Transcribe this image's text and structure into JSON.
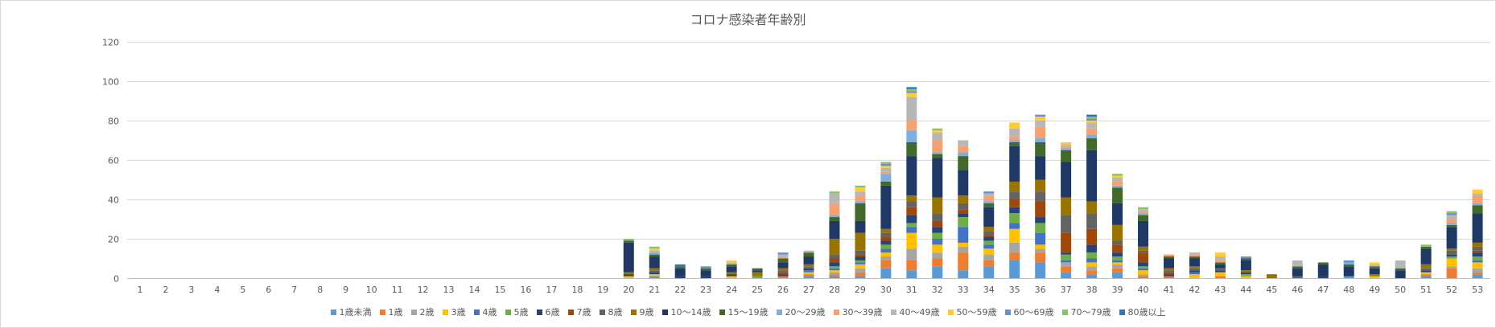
{
  "chart_data": {
    "type": "stacked-bar",
    "title": "コロナ感染者年齢別",
    "xlabel": "",
    "ylabel": "",
    "ylim": [
      0,
      120
    ],
    "yticks": [
      0,
      20,
      40,
      60,
      80,
      100,
      120
    ],
    "grid": true,
    "legend_position": "bottom",
    "categories": [
      "1",
      "2",
      "3",
      "4",
      "5",
      "6",
      "7",
      "8",
      "9",
      "10",
      "11",
      "12",
      "13",
      "14",
      "15",
      "16",
      "17",
      "18",
      "19",
      "20",
      "21",
      "22",
      "23",
      "24",
      "25",
      "26",
      "27",
      "28",
      "29",
      "30",
      "31",
      "32",
      "33",
      "34",
      "35",
      "36",
      "37",
      "38",
      "39",
      "40",
      "41",
      "42",
      "43",
      "44",
      "45",
      "46",
      "47",
      "48",
      "49",
      "50",
      "51",
      "52",
      "53"
    ],
    "series": [
      {
        "name": "1歳未満",
        "color": "#5b9bd5",
        "values": [
          0,
          0,
          0,
          0,
          0,
          0,
          0,
          0,
          0,
          0,
          0,
          0,
          0,
          0,
          0,
          0,
          0,
          0,
          0,
          0,
          1,
          0,
          0,
          0,
          0,
          0,
          1,
          1,
          1,
          5,
          4,
          6,
          4,
          6,
          9,
          8,
          3,
          2,
          3,
          0,
          0,
          0,
          0,
          0,
          0,
          0,
          0,
          1,
          0,
          0,
          1,
          0,
          2
        ]
      },
      {
        "name": "1歳",
        "color": "#ed7d31",
        "values": [
          0,
          0,
          0,
          0,
          0,
          0,
          0,
          0,
          0,
          0,
          0,
          0,
          0,
          0,
          0,
          0,
          0,
          0,
          0,
          0,
          0,
          0,
          0,
          0,
          0,
          1,
          1,
          1,
          2,
          4,
          5,
          4,
          9,
          3,
          4,
          5,
          3,
          2,
          2,
          1,
          1,
          0,
          1,
          0,
          0,
          0,
          0,
          0,
          0,
          0,
          1,
          5,
          1
        ]
      },
      {
        "name": "2歳",
        "color": "#a5a5a5",
        "values": [
          0,
          0,
          0,
          0,
          0,
          0,
          0,
          0,
          0,
          0,
          0,
          0,
          0,
          0,
          0,
          0,
          0,
          0,
          0,
          0,
          0,
          0,
          0,
          0,
          0,
          0,
          0,
          1,
          2,
          2,
          6,
          3,
          3,
          3,
          5,
          2,
          2,
          2,
          2,
          1,
          0,
          0,
          0,
          0,
          0,
          0,
          0,
          0,
          0,
          0,
          0,
          1,
          2
        ]
      },
      {
        "name": "3歳",
        "color": "#ffc000",
        "values": [
          0,
          0,
          0,
          0,
          0,
          0,
          0,
          0,
          0,
          0,
          0,
          0,
          0,
          0,
          0,
          0,
          0,
          0,
          0,
          1,
          1,
          0,
          0,
          1,
          0,
          0,
          1,
          1,
          2,
          2,
          8,
          4,
          2,
          3,
          7,
          2,
          0,
          2,
          1,
          2,
          0,
          2,
          2,
          1,
          0,
          0,
          0,
          0,
          1,
          0,
          1,
          4,
          3
        ]
      },
      {
        "name": "4歳",
        "color": "#4472c4",
        "values": [
          0,
          0,
          0,
          0,
          0,
          0,
          0,
          0,
          0,
          0,
          0,
          0,
          0,
          0,
          0,
          0,
          0,
          0,
          0,
          0,
          0,
          0,
          0,
          0,
          0,
          0,
          1,
          1,
          1,
          2,
          3,
          3,
          8,
          2,
          3,
          6,
          1,
          2,
          1,
          1,
          0,
          1,
          0,
          0,
          0,
          0,
          0,
          0,
          0,
          0,
          0,
          0,
          1
        ]
      },
      {
        "name": "5歳",
        "color": "#70ad47",
        "values": [
          0,
          0,
          0,
          0,
          0,
          0,
          0,
          0,
          0,
          0,
          0,
          0,
          0,
          0,
          0,
          0,
          0,
          0,
          0,
          0,
          0,
          0,
          0,
          0,
          1,
          0,
          0,
          1,
          1,
          2,
          2,
          3,
          5,
          2,
          5,
          5,
          3,
          3,
          2,
          1,
          0,
          0,
          0,
          1,
          0,
          0,
          0,
          0,
          0,
          0,
          0,
          1,
          2
        ]
      },
      {
        "name": "6歳",
        "color": "#264478",
        "values": [
          0,
          0,
          0,
          0,
          0,
          0,
          0,
          0,
          0,
          0,
          0,
          0,
          0,
          0,
          0,
          0,
          0,
          0,
          0,
          1,
          1,
          1,
          1,
          1,
          0,
          1,
          1,
          2,
          2,
          2,
          4,
          3,
          2,
          2,
          3,
          3,
          1,
          4,
          2,
          2,
          1,
          1,
          1,
          1,
          0,
          0,
          1,
          0,
          0,
          0,
          1,
          1,
          2
        ]
      },
      {
        "name": "7歳",
        "color": "#9e480e",
        "values": [
          0,
          0,
          0,
          0,
          0,
          0,
          0,
          0,
          0,
          0,
          0,
          0,
          0,
          0,
          0,
          0,
          0,
          0,
          0,
          0,
          0,
          0,
          0,
          0,
          0,
          1,
          0,
          2,
          1,
          2,
          4,
          3,
          2,
          1,
          4,
          8,
          10,
          8,
          4,
          5,
          1,
          0,
          0,
          0,
          0,
          0,
          0,
          0,
          0,
          0,
          0,
          0,
          1
        ]
      },
      {
        "name": "8歳",
        "color": "#636363",
        "values": [
          0,
          0,
          0,
          0,
          0,
          0,
          0,
          0,
          0,
          0,
          0,
          0,
          0,
          0,
          0,
          0,
          0,
          0,
          0,
          0,
          1,
          0,
          0,
          0,
          0,
          1,
          1,
          2,
          2,
          2,
          3,
          4,
          3,
          2,
          4,
          5,
          9,
          8,
          2,
          1,
          1,
          1,
          1,
          0,
          0,
          1,
          0,
          0,
          0,
          0,
          1,
          2,
          2
        ]
      },
      {
        "name": "9歳",
        "color": "#997300",
        "values": [
          0,
          0,
          0,
          0,
          0,
          0,
          0,
          0,
          0,
          0,
          0,
          0,
          0,
          0,
          0,
          0,
          0,
          0,
          0,
          1,
          1,
          0,
          0,
          1,
          2,
          1,
          1,
          8,
          9,
          2,
          3,
          8,
          4,
          2,
          5,
          6,
          9,
          6,
          8,
          2,
          1,
          1,
          0,
          1,
          2,
          0,
          0,
          0,
          1,
          0,
          2,
          1,
          2
        ]
      },
      {
        "name": "10〜14歳",
        "color": "#203864",
        "values": [
          0,
          0,
          0,
          0,
          0,
          0,
          0,
          0,
          0,
          0,
          0,
          0,
          0,
          0,
          0,
          0,
          0,
          0,
          0,
          15,
          6,
          4,
          3,
          3,
          1,
          3,
          4,
          9,
          6,
          22,
          20,
          20,
          13,
          10,
          18,
          12,
          18,
          26,
          11,
          13,
          5,
          4,
          2,
          5,
          0,
          4,
          6,
          5,
          3,
          4,
          8,
          11,
          15
        ]
      },
      {
        "name": "15〜19歳",
        "color": "#43682b",
        "values": [
          0,
          0,
          0,
          0,
          0,
          0,
          0,
          0,
          0,
          0,
          0,
          0,
          0,
          0,
          0,
          0,
          0,
          0,
          0,
          1,
          1,
          1,
          1,
          1,
          1,
          2,
          2,
          2,
          9,
          2,
          7,
          2,
          7,
          2,
          2,
          7,
          6,
          6,
          8,
          3,
          1,
          1,
          1,
          1,
          0,
          1,
          1,
          1,
          1,
          1,
          1,
          1,
          4
        ]
      },
      {
        "name": "20〜29歳",
        "color": "#7cafdd",
        "values": [
          0,
          0,
          0,
          0,
          0,
          0,
          0,
          0,
          0,
          0,
          0,
          0,
          0,
          0,
          0,
          0,
          0,
          0,
          0,
          0,
          1,
          0,
          0,
          0,
          0,
          0,
          0,
          1,
          1,
          4,
          6,
          1,
          2,
          1,
          1,
          2,
          1,
          2,
          1,
          1,
          0,
          0,
          0,
          0,
          0,
          0,
          0,
          1,
          0,
          0,
          0,
          1,
          1
        ]
      },
      {
        "name": "30〜39歳",
        "color": "#f4a273",
        "values": [
          0,
          0,
          0,
          0,
          0,
          0,
          0,
          0,
          0,
          0,
          0,
          0,
          0,
          0,
          0,
          0,
          0,
          0,
          0,
          0,
          0,
          0,
          0,
          0,
          0,
          1,
          0,
          6,
          3,
          1,
          5,
          6,
          3,
          3,
          2,
          6,
          1,
          3,
          2,
          1,
          1,
          1,
          1,
          0,
          0,
          0,
          0,
          0,
          0,
          0,
          0,
          2,
          4
        ]
      },
      {
        "name": "40〜49歳",
        "color": "#b7b7b7",
        "values": [
          0,
          0,
          0,
          0,
          0,
          0,
          0,
          0,
          0,
          0,
          0,
          0,
          0,
          0,
          0,
          0,
          0,
          0,
          0,
          0,
          1,
          0,
          0,
          1,
          0,
          1,
          1,
          5,
          2,
          2,
          12,
          4,
          3,
          1,
          4,
          3,
          1,
          3,
          2,
          1,
          0,
          1,
          2,
          0,
          0,
          3,
          0,
          0,
          1,
          4,
          0,
          2,
          1
        ]
      },
      {
        "name": "50〜59歳",
        "color": "#ffcd33",
        "values": [
          0,
          0,
          0,
          0,
          0,
          0,
          0,
          0,
          0,
          0,
          0,
          0,
          0,
          0,
          0,
          0,
          0,
          0,
          0,
          0,
          1,
          0,
          0,
          1,
          0,
          0,
          0,
          0,
          2,
          1,
          2,
          1,
          0,
          0,
          3,
          2,
          1,
          1,
          1,
          0,
          0,
          0,
          2,
          0,
          0,
          0,
          0,
          0,
          1,
          0,
          0,
          0,
          2
        ]
      },
      {
        "name": "60〜69歳",
        "color": "#698ed0",
        "values": [
          0,
          0,
          0,
          0,
          0,
          0,
          0,
          0,
          0,
          0,
          0,
          0,
          0,
          0,
          0,
          0,
          0,
          0,
          0,
          0,
          0,
          0,
          1,
          0,
          0,
          1,
          0,
          0,
          0,
          1,
          1,
          0,
          0,
          1,
          0,
          1,
          0,
          1,
          0,
          0,
          0,
          0,
          0,
          1,
          0,
          0,
          0,
          1,
          0,
          0,
          0,
          1,
          0
        ]
      },
      {
        "name": "70〜79歳",
        "color": "#8cc168",
        "values": [
          0,
          0,
          0,
          0,
          0,
          0,
          0,
          0,
          0,
          0,
          0,
          0,
          0,
          0,
          0,
          0,
          0,
          0,
          0,
          1,
          1,
          0,
          0,
          0,
          0,
          0,
          0,
          1,
          1,
          1,
          1,
          1,
          0,
          0,
          0,
          0,
          0,
          1,
          1,
          1,
          0,
          0,
          0,
          0,
          0,
          0,
          0,
          0,
          0,
          0,
          1,
          1,
          0
        ]
      },
      {
        "name": "80歳以上",
        "color": "#2e75b6",
        "values": [
          0,
          0,
          0,
          0,
          0,
          0,
          0,
          0,
          0,
          0,
          0,
          0,
          0,
          0,
          0,
          0,
          0,
          0,
          0,
          0,
          0,
          1,
          0,
          0,
          0,
          0,
          0,
          0,
          0,
          0,
          1,
          0,
          0,
          0,
          0,
          0,
          0,
          1,
          0,
          0,
          0,
          0,
          0,
          0,
          0,
          0,
          0,
          0,
          0,
          0,
          0,
          0,
          0
        ]
      }
    ]
  }
}
